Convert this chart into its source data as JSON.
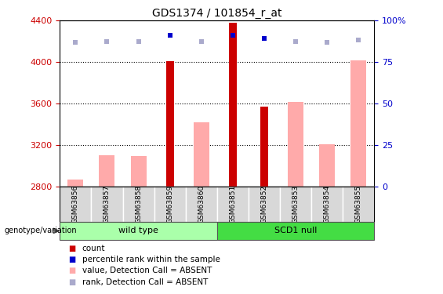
{
  "title": "GDS1374 / 101854_r_at",
  "samples": [
    "GSM63856",
    "GSM63857",
    "GSM63858",
    "GSM63859",
    "GSM63860",
    "GSM63851",
    "GSM63852",
    "GSM63853",
    "GSM63854",
    "GSM63855"
  ],
  "count_values": [
    null,
    null,
    null,
    4010,
    null,
    4380,
    3570,
    null,
    null,
    null
  ],
  "rank_values": [
    null,
    null,
    null,
    4260,
    null,
    4260,
    4230,
    null,
    null,
    null
  ],
  "absent_values": [
    2870,
    3100,
    3095,
    null,
    3420,
    null,
    null,
    3620,
    3210,
    4020
  ],
  "absent_ranks": [
    4190,
    4195,
    4200,
    null,
    4200,
    null,
    null,
    4195,
    4190,
    4215
  ],
  "ylim_left": [
    2800,
    4400
  ],
  "ylim_right": [
    0,
    100
  ],
  "yticks_left": [
    2800,
    3200,
    3600,
    4000,
    4400
  ],
  "yticks_right": [
    0,
    25,
    50,
    75,
    100
  ],
  "count_color": "#cc0000",
  "rank_color": "#0000cc",
  "absent_val_color": "#ffaaaa",
  "absent_rank_color": "#aaaacc",
  "wt_color": "#aaffaa",
  "scd1_color": "#44dd44",
  "label_color_left": "#cc0000",
  "label_color_right": "#0000cc",
  "absent_bar_width": 0.5,
  "count_bar_width": 0.25,
  "grid_color": "#000000"
}
